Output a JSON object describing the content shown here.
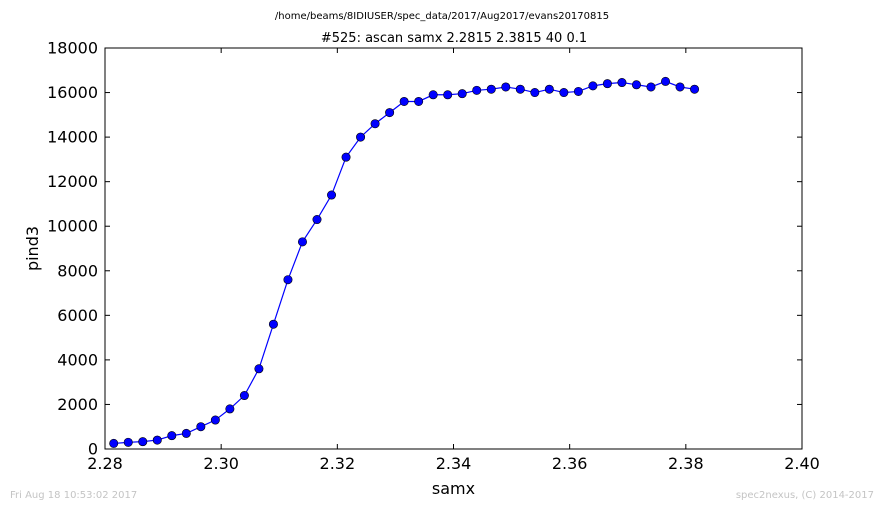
{
  "header": {
    "path": "/home/beams/8IDIUSER/spec_data/2017/Aug2017/evans20170815",
    "scan_title": "#525: ascan  samx 2.2815 2.3815  40 0.1"
  },
  "footer": {
    "timestamp": "Fri Aug 18 10:53:02 2017",
    "credit": "spec2nexus, (C) 2014-2017"
  },
  "chart_data": {
    "type": "line",
    "title": "#525: ascan  samx 2.2815 2.3815  40 0.1",
    "xlabel": "samx",
    "ylabel": "pind3",
    "xlim": [
      2.28,
      2.4
    ],
    "ylim": [
      0,
      18000
    ],
    "xticks": [
      2.28,
      2.3,
      2.32,
      2.34,
      2.36,
      2.38,
      2.4
    ],
    "xtick_labels": [
      "2.28",
      "2.30",
      "2.32",
      "2.34",
      "2.36",
      "2.38",
      "2.40"
    ],
    "yticks": [
      0,
      2000,
      4000,
      6000,
      8000,
      10000,
      12000,
      14000,
      16000,
      18000
    ],
    "ytick_labels": [
      "0",
      "2000",
      "4000",
      "6000",
      "8000",
      "10000",
      "12000",
      "14000",
      "16000",
      "18000"
    ],
    "grid": false,
    "line_color": "#0000ff",
    "marker_color": "#0000ff",
    "x": [
      2.2815,
      2.284,
      2.2865,
      2.289,
      2.2915,
      2.294,
      2.2965,
      2.299,
      2.3015,
      2.304,
      2.3065,
      2.309,
      2.3115,
      2.314,
      2.3165,
      2.319,
      2.3215,
      2.324,
      2.3265,
      2.329,
      2.3315,
      2.334,
      2.3365,
      2.339,
      2.3415,
      2.344,
      2.3465,
      2.349,
      2.3515,
      2.354,
      2.3565,
      2.359,
      2.3615,
      2.364,
      2.3665,
      2.369,
      2.3715,
      2.374,
      2.3765,
      2.379,
      2.3815
    ],
    "y": [
      250,
      300,
      330,
      400,
      600,
      700,
      1000,
      1300,
      1800,
      2400,
      3600,
      5600,
      7600,
      9300,
      10300,
      11400,
      13100,
      14000,
      14600,
      15100,
      15600,
      15600,
      15900,
      15900,
      15950,
      16100,
      16150,
      16250,
      16150,
      16000,
      16150,
      16000,
      16050,
      16300,
      16400,
      16450,
      16350,
      16250,
      16500,
      16250,
      16150
    ]
  }
}
